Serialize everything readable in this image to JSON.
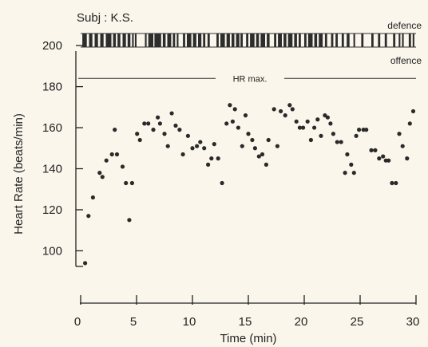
{
  "chart_data": {
    "type": "scatter",
    "subject_label": "Subj : K.S.",
    "phase_labels": {
      "defence": "defence",
      "offence": "offence"
    },
    "xlabel": "Time (min)",
    "ylabel": "Heart Rate (beats/min)",
    "xlim": [
      0,
      30
    ],
    "ylim": [
      92,
      202
    ],
    "x_ticks": [
      "0",
      "5",
      "10",
      "15",
      "20",
      "25",
      "30"
    ],
    "y_ticks": [
      "100",
      "120",
      "140",
      "160",
      "180",
      "200"
    ],
    "grid": false,
    "reference_line": {
      "label": "HR max.",
      "value": 184
    },
    "marker_color": "#2a2a2a",
    "phase_bar_color": "#2d2d2d",
    "defence_intervals": [
      [
        0.15,
        0.55
      ],
      [
        0.75,
        1.05
      ],
      [
        1.25,
        1.55
      ],
      [
        1.75,
        2.05
      ],
      [
        2.25,
        2.75
      ],
      [
        2.9,
        3.15
      ],
      [
        3.3,
        3.55
      ],
      [
        3.75,
        4.05
      ],
      [
        4.2,
        4.45
      ],
      [
        4.6,
        4.75
      ],
      [
        4.85,
        5.0
      ],
      [
        5.75,
        5.9
      ],
      [
        6.05,
        6.5
      ],
      [
        6.6,
        7.2
      ],
      [
        7.35,
        7.6
      ],
      [
        7.75,
        8.1
      ],
      [
        8.25,
        8.45
      ],
      [
        8.6,
        8.75
      ],
      [
        9.15,
        9.35
      ],
      [
        9.5,
        9.9
      ],
      [
        10.05,
        10.35
      ],
      [
        10.5,
        10.8
      ],
      [
        10.95,
        11.15
      ],
      [
        11.35,
        11.55
      ],
      [
        12.15,
        12.35
      ],
      [
        12.5,
        12.9
      ],
      [
        13.05,
        13.35
      ],
      [
        13.5,
        13.75
      ],
      [
        13.9,
        14.2
      ],
      [
        14.3,
        14.5
      ],
      [
        14.8,
        15.0
      ],
      [
        15.15,
        15.55
      ],
      [
        15.7,
        15.95
      ],
      [
        16.1,
        16.5
      ],
      [
        16.65,
        16.9
      ],
      [
        17.3,
        17.5
      ],
      [
        17.65,
        18.0
      ],
      [
        18.15,
        18.4
      ],
      [
        18.55,
        18.95
      ],
      [
        19.1,
        19.35
      ],
      [
        19.5,
        19.7
      ],
      [
        20.0,
        20.2
      ],
      [
        20.35,
        20.75
      ],
      [
        20.9,
        21.15
      ],
      [
        21.3,
        21.65
      ],
      [
        21.85,
        22.05
      ],
      [
        22.4,
        22.6
      ],
      [
        22.8,
        23.0
      ],
      [
        23.35,
        23.55
      ],
      [
        23.8,
        24.05
      ],
      [
        24.4,
        24.55
      ],
      [
        25.1,
        25.3
      ],
      [
        26.0,
        26.2
      ],
      [
        26.6,
        26.8
      ],
      [
        27.2,
        27.4
      ],
      [
        27.95,
        28.15
      ],
      [
        28.45,
        28.6
      ],
      [
        28.75,
        28.9
      ],
      [
        29.35,
        29.55
      ],
      [
        29.7,
        29.85
      ]
    ],
    "points": [
      [
        0.4,
        94
      ],
      [
        0.7,
        117
      ],
      [
        1.1,
        126
      ],
      [
        1.7,
        138
      ],
      [
        1.95,
        136
      ],
      [
        2.3,
        144
      ],
      [
        2.8,
        147
      ],
      [
        3.05,
        159
      ],
      [
        3.25,
        147
      ],
      [
        3.75,
        141
      ],
      [
        4.05,
        133
      ],
      [
        4.35,
        115
      ],
      [
        4.6,
        133
      ],
      [
        5.05,
        157
      ],
      [
        5.3,
        154
      ],
      [
        5.7,
        162
      ],
      [
        6.05,
        162
      ],
      [
        6.5,
        159
      ],
      [
        6.9,
        165
      ],
      [
        7.1,
        162
      ],
      [
        7.5,
        157
      ],
      [
        7.8,
        151
      ],
      [
        8.15,
        167
      ],
      [
        8.5,
        161
      ],
      [
        8.85,
        159
      ],
      [
        9.15,
        147
      ],
      [
        9.6,
        156
      ],
      [
        10.0,
        150
      ],
      [
        10.4,
        151
      ],
      [
        10.7,
        153
      ],
      [
        11.05,
        150
      ],
      [
        11.4,
        142
      ],
      [
        11.7,
        145
      ],
      [
        11.95,
        152
      ],
      [
        12.3,
        145
      ],
      [
        12.65,
        133
      ],
      [
        13.05,
        162
      ],
      [
        13.35,
        171
      ],
      [
        13.6,
        163
      ],
      [
        13.8,
        169
      ],
      [
        14.1,
        160
      ],
      [
        14.45,
        151
      ],
      [
        14.75,
        166
      ],
      [
        15.0,
        157
      ],
      [
        15.35,
        154
      ],
      [
        15.6,
        150
      ],
      [
        15.95,
        146
      ],
      [
        16.25,
        147
      ],
      [
        16.6,
        142
      ],
      [
        16.8,
        154
      ],
      [
        17.3,
        169
      ],
      [
        17.6,
        151
      ],
      [
        17.9,
        168
      ],
      [
        18.3,
        166
      ],
      [
        18.7,
        171
      ],
      [
        18.95,
        169
      ],
      [
        19.3,
        163
      ],
      [
        19.6,
        160
      ],
      [
        19.9,
        160
      ],
      [
        20.3,
        163
      ],
      [
        20.6,
        154
      ],
      [
        20.9,
        160
      ],
      [
        21.2,
        164
      ],
      [
        21.5,
        156
      ],
      [
        21.85,
        166
      ],
      [
        22.1,
        165
      ],
      [
        22.35,
        162
      ],
      [
        22.6,
        157
      ],
      [
        22.95,
        153
      ],
      [
        23.3,
        153
      ],
      [
        23.65,
        138
      ],
      [
        23.85,
        147
      ],
      [
        24.2,
        142
      ],
      [
        24.45,
        138
      ],
      [
        24.65,
        156
      ],
      [
        24.9,
        159
      ],
      [
        25.3,
        159
      ],
      [
        25.55,
        159
      ],
      [
        26.0,
        149
      ],
      [
        26.35,
        149
      ],
      [
        26.7,
        145
      ],
      [
        27.05,
        146
      ],
      [
        27.3,
        144
      ],
      [
        27.55,
        144
      ],
      [
        27.85,
        133
      ],
      [
        28.2,
        133
      ],
      [
        28.5,
        157
      ],
      [
        28.8,
        151
      ],
      [
        29.2,
        145
      ],
      [
        29.45,
        162
      ],
      [
        29.75,
        168
      ]
    ]
  }
}
